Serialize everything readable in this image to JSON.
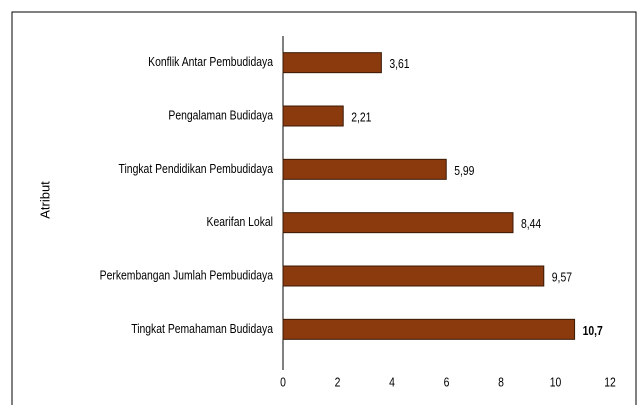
{
  "chart_data": {
    "type": "bar",
    "orientation": "horizontal",
    "y_label": "Atribut",
    "categories": [
      "Konflik Antar Pembudidaya",
      "Pengalaman Budidaya",
      "Tingkat Pendidikan Pembudidaya",
      "Kearifan Lokal",
      "Perkembangan Jumlah Pembudidaya",
      "Tingkat Pemahaman Budidaya"
    ],
    "values": [
      3.61,
      2.21,
      5.99,
      8.44,
      9.57,
      10.7
    ],
    "value_labels": [
      "3,61",
      "2,21",
      "5,99",
      "8,44",
      "9,57",
      "10,7"
    ],
    "value_label_bold": [
      false,
      false,
      false,
      false,
      false,
      true
    ],
    "color": "#8b3a0e",
    "xlim": [
      0,
      12
    ],
    "xticks": [
      0,
      2,
      4,
      6,
      8,
      10,
      12
    ],
    "grid": false
  }
}
